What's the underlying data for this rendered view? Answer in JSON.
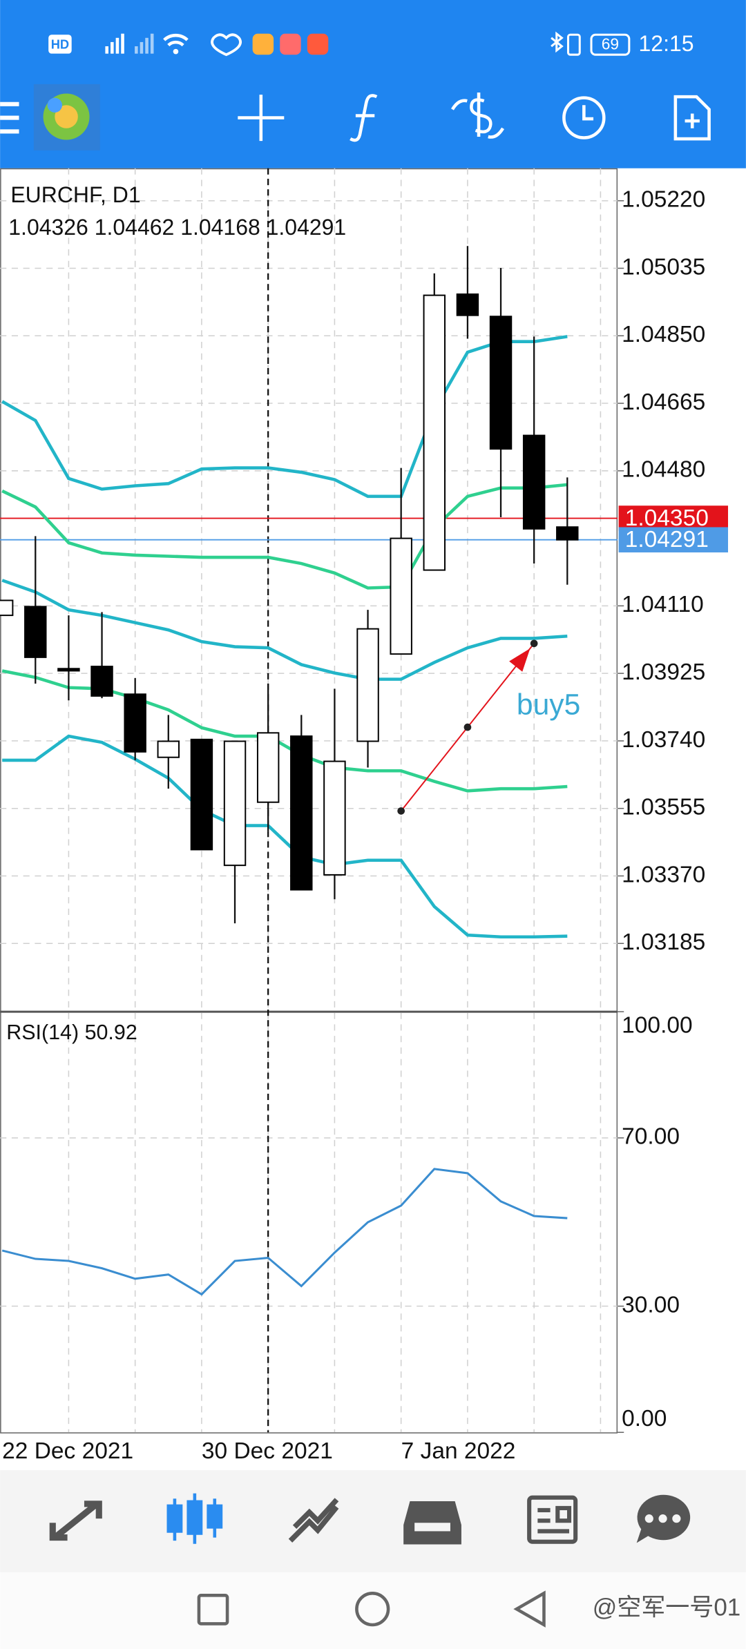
{
  "status_bar": {
    "network": "HD",
    "battery": "69",
    "time": "12:15"
  },
  "chart_data": {
    "type": "candlestick",
    "symbol": "EURCHF, D1",
    "categories": [
      "22 Dec 2021",
      null,
      null,
      null,
      null,
      null,
      "30 Dec 2021",
      null,
      null,
      null,
      null,
      null,
      "7 Jan 2022",
      null,
      null,
      null,
      null,
      null
    ],
    "open": [
      1.04084,
      1.04108,
      1.03938,
      1.03944,
      1.03868,
      1.03695,
      1.03744,
      1.03399,
      1.03572,
      1.03753,
      1.03373,
      1.03739,
      1.03978,
      1.04208,
      1.04964,
      1.04903,
      1.04577,
      1.04326
    ],
    "high": [
      1.04125,
      1.04301,
      1.04084,
      1.04093,
      1.03912,
      1.03811,
      1.03744,
      1.03739,
      1.03897,
      1.03811,
      1.03883,
      1.04099,
      1.04488,
      1.05021,
      1.05096,
      1.05036,
      1.04848,
      1.04462
    ],
    "low": [
      1.04084,
      1.03897,
      1.03851,
      1.03857,
      1.03687,
      1.03609,
      1.03442,
      1.0324,
      1.03494,
      1.03332,
      1.03306,
      1.03667,
      1.03978,
      1.04208,
      1.04842,
      1.04353,
      1.04226,
      1.04168
    ],
    "close": [
      1.04125,
      1.03969,
      1.03932,
      1.03863,
      1.0371,
      1.03739,
      1.03442,
      1.03739,
      1.03762,
      1.03332,
      1.03684,
      1.04047,
      1.04295,
      1.04961,
      1.04906,
      1.0454,
      1.04321,
      1.04291
    ],
    "bands": [
      {
        "color": "#22b5c8",
        "values": [
          1.0467,
          1.04618,
          1.04459,
          1.0443,
          1.04439,
          1.04445,
          1.04485,
          1.04488,
          1.04488,
          1.04476,
          1.04456,
          1.0441,
          1.0441,
          1.04646,
          1.04805,
          1.04834,
          1.04834,
          1.04848
        ]
      },
      {
        "color": "#2fd08f",
        "values": [
          1.04425,
          1.04381,
          1.04283,
          1.04255,
          1.04249,
          1.04246,
          1.04243,
          1.04243,
          1.04243,
          1.04226,
          1.042,
          1.04159,
          1.04162,
          1.04324,
          1.0441,
          1.04433,
          1.04433,
          1.04442
        ]
      },
      {
        "color": "#22b5c8",
        "values": [
          1.0418,
          1.04148,
          1.04099,
          1.04084,
          1.04064,
          1.04044,
          1.04012,
          1.03998,
          1.03995,
          1.03949,
          1.03926,
          1.03909,
          1.03909,
          1.03955,
          1.03995,
          1.04021,
          1.04021,
          1.04027
        ]
      },
      {
        "color": "#2fd08f",
        "values": [
          1.03932,
          1.03914,
          1.03886,
          1.03883,
          1.03857,
          1.03825,
          1.03776,
          1.03753,
          1.03753,
          1.03701,
          1.03667,
          1.03658,
          1.03658,
          1.03629,
          1.03603,
          1.03609,
          1.03609,
          1.03615
        ]
      },
      {
        "color": "#22b5c8",
        "values": [
          1.03687,
          1.03687,
          1.03753,
          1.03736,
          1.0369,
          1.03638,
          1.03551,
          1.03508,
          1.03508,
          1.03422,
          1.03401,
          1.03413,
          1.03413,
          1.03286,
          1.03208,
          1.03203,
          1.03203,
          1.03205
        ]
      }
    ],
    "ylim": [
      1.02998,
      1.05309
    ],
    "yticks": [
      {
        "value": 1.0522,
        "label": "1.05220"
      },
      1.05035,
      {
        "value": 1.0485,
        "label": "1.04850"
      },
      1.04665,
      {
        "value": 1.0448,
        "label": "1.04480"
      },
      {
        "value": 1.0411,
        "label": "1.04110"
      },
      1.03925,
      {
        "value": 1.0374,
        "label": "1.03740"
      },
      1.03555,
      {
        "value": 1.0337,
        "label": "1.03370"
      },
      1.03185
    ],
    "grid": true,
    "price_lines": [
      {
        "value": 1.0435,
        "label": "1.04350",
        "color": "#e3131b"
      },
      {
        "value": 1.04291,
        "color": "#4f9be6"
      }
    ],
    "trade": {
      "label": "buy5",
      "open_price": 1.03548,
      "close_price": 1.04007,
      "color": "#e3131b"
    },
    "rsi": {
      "label": "RSI(14)",
      "color": "#3a8dd0",
      "values": [
        43.23,
        41.24,
        40.75,
        39.01,
        36.52,
        37.52,
        32.8,
        40.75,
        41.49,
        34.78,
        42.73,
        49.94,
        53.91,
        62.61,
        61.61,
        54.91,
        51.43,
        50.92
      ],
      "ylim": [
        0,
        100
      ],
      "yticks": [
        {
          "value": 100,
          "label": "100.00"
        },
        {
          "value": 70,
          "label": "70.00"
        },
        {
          "value": 30,
          "label": "30.00"
        },
        {
          "value": 0,
          "label": "0.00"
        }
      ]
    }
  },
  "watermark": "@空军一号01"
}
